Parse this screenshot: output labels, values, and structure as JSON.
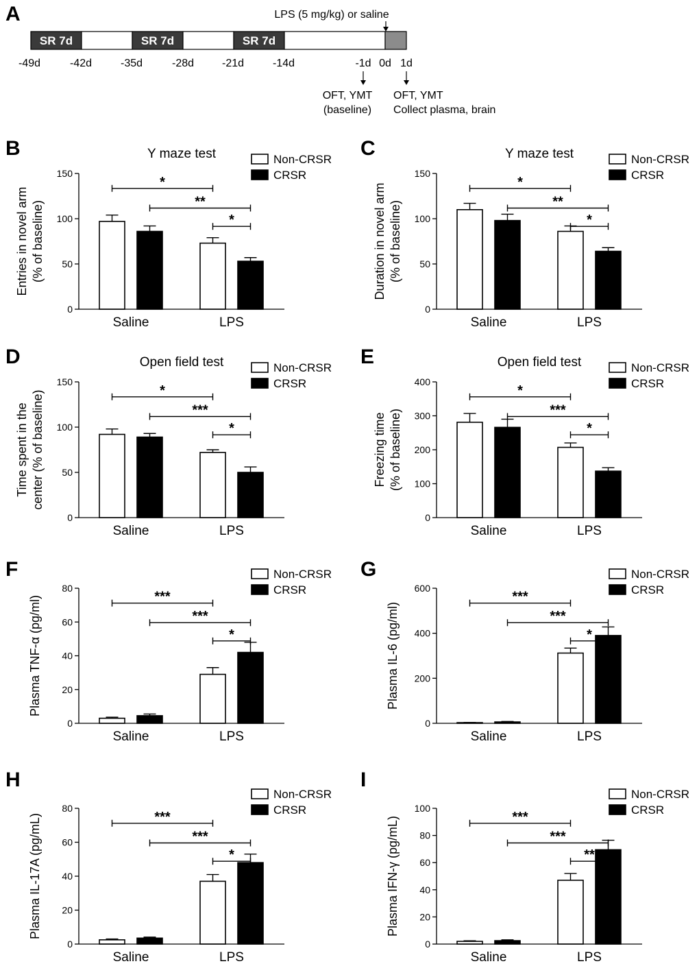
{
  "timeline": {
    "label": "A",
    "injection": "LPS (5 mg/kg) or saline",
    "segments": [
      {
        "text": "SR 7d",
        "kind": "sr"
      },
      {
        "text": "",
        "kind": "rest"
      },
      {
        "text": "SR 7d",
        "kind": "sr"
      },
      {
        "text": "",
        "kind": "rest"
      },
      {
        "text": "SR 7d",
        "kind": "sr"
      },
      {
        "text": "",
        "kind": "rest"
      },
      {
        "text": "",
        "kind": "lps"
      }
    ],
    "ticks": [
      "-49d",
      "-42d",
      "-35d",
      "-28d",
      "-21d",
      "-14d",
      "-1d",
      "0d",
      "1d"
    ],
    "notes": [
      {
        "line1": "OFT, YMT",
        "line2": "(baseline)"
      },
      {
        "line1": "OFT, YMT",
        "line2": "Collect plasma, brain"
      }
    ]
  },
  "legend": {
    "series": [
      "Non-CRSR",
      "CRSR"
    ]
  },
  "colors": {
    "non_crsr": "#ffffff",
    "crsr": "#000000",
    "sr_block": "#3a3a3a",
    "lps_block": "#8c8c8c"
  },
  "chart_data": [
    {
      "id": "B",
      "type": "bar",
      "title": "Y maze test",
      "ylabel": [
        "Entries in novel arm",
        "(% of baseline)"
      ],
      "categories": [
        "Saline",
        "LPS"
      ],
      "ylim": [
        0,
        150
      ],
      "yticks": [
        0,
        50,
        100,
        150
      ],
      "series": [
        {
          "name": "Non-CRSR",
          "values": [
            97,
            73
          ],
          "errors": [
            7,
            6
          ]
        },
        {
          "name": "CRSR",
          "values": [
            86,
            53
          ],
          "errors": [
            6,
            4
          ]
        }
      ],
      "comparisons": [
        {
          "from": [
            0,
            0
          ],
          "to": [
            1,
            0
          ],
          "label": "*"
        },
        {
          "from": [
            0,
            1
          ],
          "to": [
            1,
            1
          ],
          "label": "**"
        },
        {
          "from": [
            1,
            0
          ],
          "to": [
            1,
            1
          ],
          "label": "*"
        }
      ]
    },
    {
      "id": "C",
      "type": "bar",
      "title": "Y maze test",
      "ylabel": [
        "Duration in novel arm",
        "(% of baseline)"
      ],
      "categories": [
        "Saline",
        "LPS"
      ],
      "ylim": [
        0,
        150
      ],
      "yticks": [
        0,
        50,
        100,
        150
      ],
      "series": [
        {
          "name": "Non-CRSR",
          "values": [
            110,
            86
          ],
          "errors": [
            7,
            6
          ]
        },
        {
          "name": "CRSR",
          "values": [
            98,
            64
          ],
          "errors": [
            7,
            4
          ]
        }
      ],
      "comparisons": [
        {
          "from": [
            0,
            0
          ],
          "to": [
            1,
            0
          ],
          "label": "*"
        },
        {
          "from": [
            0,
            1
          ],
          "to": [
            1,
            1
          ],
          "label": "**"
        },
        {
          "from": [
            1,
            0
          ],
          "to": [
            1,
            1
          ],
          "label": "*"
        }
      ]
    },
    {
      "id": "D",
      "type": "bar",
      "title": "Open field test",
      "ylabel": [
        "Time spent in the",
        "center (% of baseline)"
      ],
      "categories": [
        "Saline",
        "LPS"
      ],
      "ylim": [
        0,
        150
      ],
      "yticks": [
        0,
        50,
        100,
        150
      ],
      "series": [
        {
          "name": "Non-CRSR",
          "values": [
            92,
            72
          ],
          "errors": [
            6,
            3
          ]
        },
        {
          "name": "CRSR",
          "values": [
            89,
            50
          ],
          "errors": [
            4,
            6
          ]
        }
      ],
      "comparisons": [
        {
          "from": [
            0,
            0
          ],
          "to": [
            1,
            0
          ],
          "label": "*"
        },
        {
          "from": [
            0,
            1
          ],
          "to": [
            1,
            1
          ],
          "label": "***"
        },
        {
          "from": [
            1,
            0
          ],
          "to": [
            1,
            1
          ],
          "label": "*"
        }
      ]
    },
    {
      "id": "E",
      "type": "bar",
      "title": "Open field test",
      "ylabel": [
        "Freezing time",
        "(% of baseline)"
      ],
      "categories": [
        "Saline",
        "LPS"
      ],
      "ylim": [
        0,
        400
      ],
      "yticks": [
        0,
        100,
        200,
        300,
        400
      ],
      "series": [
        {
          "name": "Non-CRSR",
          "values": [
            281,
            207
          ],
          "errors": [
            26,
            13
          ]
        },
        {
          "name": "CRSR",
          "values": [
            266,
            137
          ],
          "errors": [
            24,
            10
          ]
        }
      ],
      "comparisons": [
        {
          "from": [
            0,
            0
          ],
          "to": [
            1,
            0
          ],
          "label": "*"
        },
        {
          "from": [
            0,
            1
          ],
          "to": [
            1,
            1
          ],
          "label": "***"
        },
        {
          "from": [
            1,
            0
          ],
          "to": [
            1,
            1
          ],
          "label": "*"
        }
      ]
    },
    {
      "id": "F",
      "type": "bar",
      "title": "",
      "ylabel": [
        "Plasma TNF-α  (pg/ml)"
      ],
      "categories": [
        "Saline",
        "LPS"
      ],
      "ylim": [
        0,
        80
      ],
      "yticks": [
        0,
        20,
        40,
        60,
        80
      ],
      "series": [
        {
          "name": "Non-CRSR",
          "values": [
            3,
            29
          ],
          "errors": [
            0.6,
            4
          ]
        },
        {
          "name": "CRSR",
          "values": [
            4.5,
            42
          ],
          "errors": [
            1,
            6
          ]
        }
      ],
      "comparisons": [
        {
          "from": [
            0,
            0
          ],
          "to": [
            1,
            0
          ],
          "label": "***"
        },
        {
          "from": [
            0,
            1
          ],
          "to": [
            1,
            1
          ],
          "label": "***"
        },
        {
          "from": [
            1,
            0
          ],
          "to": [
            1,
            1
          ],
          "label": "*"
        }
      ]
    },
    {
      "id": "G",
      "type": "bar",
      "title": "",
      "ylabel": [
        "Plasma IL-6 (pg/ml)"
      ],
      "categories": [
        "Saline",
        "LPS"
      ],
      "ylim": [
        0,
        600
      ],
      "yticks": [
        0,
        200,
        400,
        600
      ],
      "series": [
        {
          "name": "Non-CRSR",
          "values": [
            3,
            312
          ],
          "errors": [
            1,
            22
          ]
        },
        {
          "name": "CRSR",
          "values": [
            6,
            390
          ],
          "errors": [
            2,
            38
          ]
        }
      ],
      "comparisons": [
        {
          "from": [
            0,
            0
          ],
          "to": [
            1,
            0
          ],
          "label": "***"
        },
        {
          "from": [
            0,
            1
          ],
          "to": [
            1,
            1
          ],
          "label": "***"
        },
        {
          "from": [
            1,
            0
          ],
          "to": [
            1,
            1
          ],
          "label": "*"
        }
      ]
    },
    {
      "id": "H",
      "type": "bar",
      "title": "",
      "ylabel": [
        "Plasma IL-17A (pg/mL)"
      ],
      "categories": [
        "Saline",
        "LPS"
      ],
      "ylim": [
        0,
        80
      ],
      "yticks": [
        0,
        20,
        40,
        60,
        80
      ],
      "series": [
        {
          "name": "Non-CRSR",
          "values": [
            2.5,
            37
          ],
          "errors": [
            0.5,
            4
          ]
        },
        {
          "name": "CRSR",
          "values": [
            3.5,
            48
          ],
          "errors": [
            0.6,
            5
          ]
        }
      ],
      "comparisons": [
        {
          "from": [
            0,
            0
          ],
          "to": [
            1,
            0
          ],
          "label": "***"
        },
        {
          "from": [
            0,
            1
          ],
          "to": [
            1,
            1
          ],
          "label": "***"
        },
        {
          "from": [
            1,
            0
          ],
          "to": [
            1,
            1
          ],
          "label": "*"
        }
      ]
    },
    {
      "id": "I",
      "type": "bar",
      "title": "",
      "ylabel": [
        "Plasma IFN-γ  (pg/mL)"
      ],
      "categories": [
        "Saline",
        "LPS"
      ],
      "ylim": [
        0,
        100
      ],
      "yticks": [
        0,
        20,
        40,
        60,
        80,
        100
      ],
      "series": [
        {
          "name": "Non-CRSR",
          "values": [
            2,
            47
          ],
          "errors": [
            0.4,
            5
          ]
        },
        {
          "name": "CRSR",
          "values": [
            2.5,
            69.5
          ],
          "errors": [
            0.6,
            7
          ]
        }
      ],
      "comparisons": [
        {
          "from": [
            0,
            0
          ],
          "to": [
            1,
            0
          ],
          "label": "***"
        },
        {
          "from": [
            0,
            1
          ],
          "to": [
            1,
            1
          ],
          "label": "***"
        },
        {
          "from": [
            1,
            0
          ],
          "to": [
            1,
            1
          ],
          "label": "**"
        }
      ]
    }
  ]
}
